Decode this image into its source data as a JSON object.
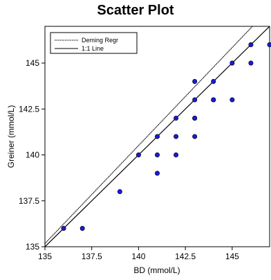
{
  "chart_data": {
    "type": "scatter",
    "title": "Scatter Plot",
    "xlabel": "BD (mmol/L)",
    "ylabel": "Greiner (mmol/L)",
    "xlim": [
      135,
      147
    ],
    "ylim": [
      135,
      147
    ],
    "x_ticks": [
      135,
      137.5,
      140,
      142.5,
      145
    ],
    "y_ticks": [
      135,
      137.5,
      140,
      142.5,
      145
    ],
    "x_tick_labels": [
      "135",
      "137.5",
      "140",
      "142.5",
      "145"
    ],
    "y_tick_labels": [
      "135",
      "137.5",
      "140",
      "142.5",
      "145"
    ],
    "grid": false,
    "legend_position": "top-left",
    "point_color": "#1a1adb",
    "points": [
      {
        "x": 136,
        "y": 136
      },
      {
        "x": 137,
        "y": 136
      },
      {
        "x": 139,
        "y": 138
      },
      {
        "x": 140,
        "y": 140
      },
      {
        "x": 141,
        "y": 139
      },
      {
        "x": 141,
        "y": 140
      },
      {
        "x": 141,
        "y": 141
      },
      {
        "x": 142,
        "y": 140
      },
      {
        "x": 142,
        "y": 141
      },
      {
        "x": 142,
        "y": 142
      },
      {
        "x": 143,
        "y": 141
      },
      {
        "x": 143,
        "y": 142
      },
      {
        "x": 143,
        "y": 142
      },
      {
        "x": 143,
        "y": 143
      },
      {
        "x": 143,
        "y": 144
      },
      {
        "x": 144,
        "y": 143
      },
      {
        "x": 144,
        "y": 143
      },
      {
        "x": 144,
        "y": 144
      },
      {
        "x": 145,
        "y": 143
      },
      {
        "x": 145,
        "y": 145
      },
      {
        "x": 146,
        "y": 145
      },
      {
        "x": 146,
        "y": 146
      },
      {
        "x": 147,
        "y": 146
      }
    ],
    "series": [
      {
        "name": "Deming Regr",
        "style": "dotted",
        "slope": 1.067,
        "intercept": -8.87
      },
      {
        "name": "1:1 Line",
        "style": "solid",
        "slope": 1,
        "intercept": 0
      }
    ]
  }
}
